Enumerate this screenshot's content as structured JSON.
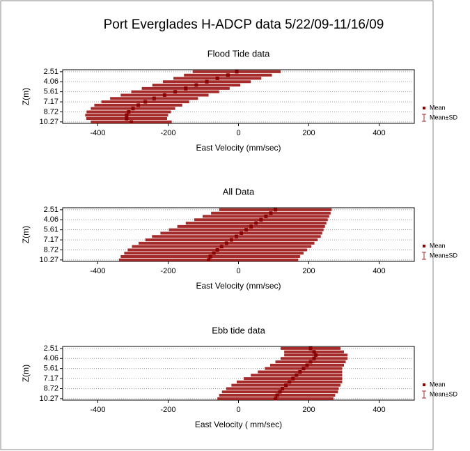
{
  "title": "Port Everglades H-ADCP data  5/22/09-11/16/09",
  "chart_data": [
    {
      "type": "profile",
      "title": "Flood Tide data",
      "xlabel": "East Velocity (mm/sec)",
      "ylabel": "Z(m)",
      "y": [
        2.51,
        3.03,
        3.54,
        4.06,
        4.58,
        5.1,
        5.61,
        6.13,
        6.65,
        7.17,
        7.68,
        8.2,
        8.72,
        9.23,
        9.75,
        10.27
      ],
      "series": [
        {
          "name": "Mean",
          "error_name": "Mean±SD",
          "color": "#8b0000",
          "error_color": "#a52a2a",
          "values": [
            -5,
            -30,
            -60,
            -90,
            -120,
            -150,
            -180,
            -210,
            -240,
            -265,
            -285,
            -300,
            -312,
            -318,
            -318,
            -305
          ],
          "errors": [
            125,
            125,
            125,
            125,
            125,
            125,
            125,
            125,
            125,
            125,
            125,
            120,
            120,
            118,
            115,
            115
          ]
        }
      ],
      "xlim": [
        -500,
        500
      ],
      "xticks": [
        -400,
        -200,
        0,
        200,
        400
      ],
      "ylim": [
        10.5,
        2.2
      ],
      "yticks": [
        2.51,
        4.06,
        5.61,
        7.17,
        8.72,
        10.27
      ],
      "legend": "right"
    },
    {
      "type": "profile",
      "title": "All Data",
      "xlabel": "East Velocity (mm/sec)",
      "ylabel": "Z(m)",
      "y": [
        2.51,
        3.03,
        3.54,
        4.06,
        4.58,
        5.1,
        5.61,
        6.13,
        6.65,
        7.17,
        7.68,
        8.2,
        8.72,
        9.23,
        9.75,
        10.27
      ],
      "series": [
        {
          "name": "Mean",
          "error_name": "Mean±SD",
          "color": "#8b0000",
          "error_color": "#a52a2a",
          "values": [
            105,
            92,
            78,
            64,
            50,
            36,
            22,
            8,
            -6,
            -20,
            -34,
            -48,
            -60,
            -70,
            -80,
            -85
          ],
          "errors": [
            160,
            170,
            180,
            190,
            200,
            210,
            220,
            230,
            240,
            245,
            250,
            255,
            255,
            255,
            255,
            255
          ]
        }
      ],
      "xlim": [
        -500,
        500
      ],
      "xticks": [
        -400,
        -200,
        0,
        200,
        400
      ],
      "ylim": [
        10.5,
        2.2
      ],
      "yticks": [
        2.51,
        4.06,
        5.61,
        7.17,
        8.72,
        10.27
      ],
      "legend": "right"
    },
    {
      "type": "profile",
      "title": "Ebb tide data",
      "xlabel": "East Velocity ( mm/sec)",
      "ylabel": "Z(m)",
      "y": [
        2.51,
        3.03,
        3.54,
        4.06,
        4.58,
        5.1,
        5.61,
        6.13,
        6.65,
        7.17,
        7.68,
        8.2,
        8.72,
        9.23,
        9.75,
        10.27
      ],
      "series": [
        {
          "name": "Mean",
          "error_name": "Mean±SD",
          "color": "#8b0000",
          "error_color": "#a52a2a",
          "values": [
            205,
            215,
            220,
            215,
            205,
            195,
            185,
            175,
            165,
            155,
            145,
            135,
            125,
            118,
            110,
            105
          ],
          "errors": [
            85,
            85,
            90,
            95,
            100,
            105,
            110,
            120,
            130,
            140,
            150,
            155,
            160,
            165,
            165,
            165
          ]
        }
      ],
      "xlim": [
        -500,
        500
      ],
      "xticks": [
        -400,
        -200,
        0,
        200,
        400
      ],
      "ylim": [
        10.5,
        2.2
      ],
      "yticks": [
        2.51,
        4.06,
        5.61,
        7.17,
        8.72,
        10.27
      ],
      "legend": "right"
    }
  ]
}
